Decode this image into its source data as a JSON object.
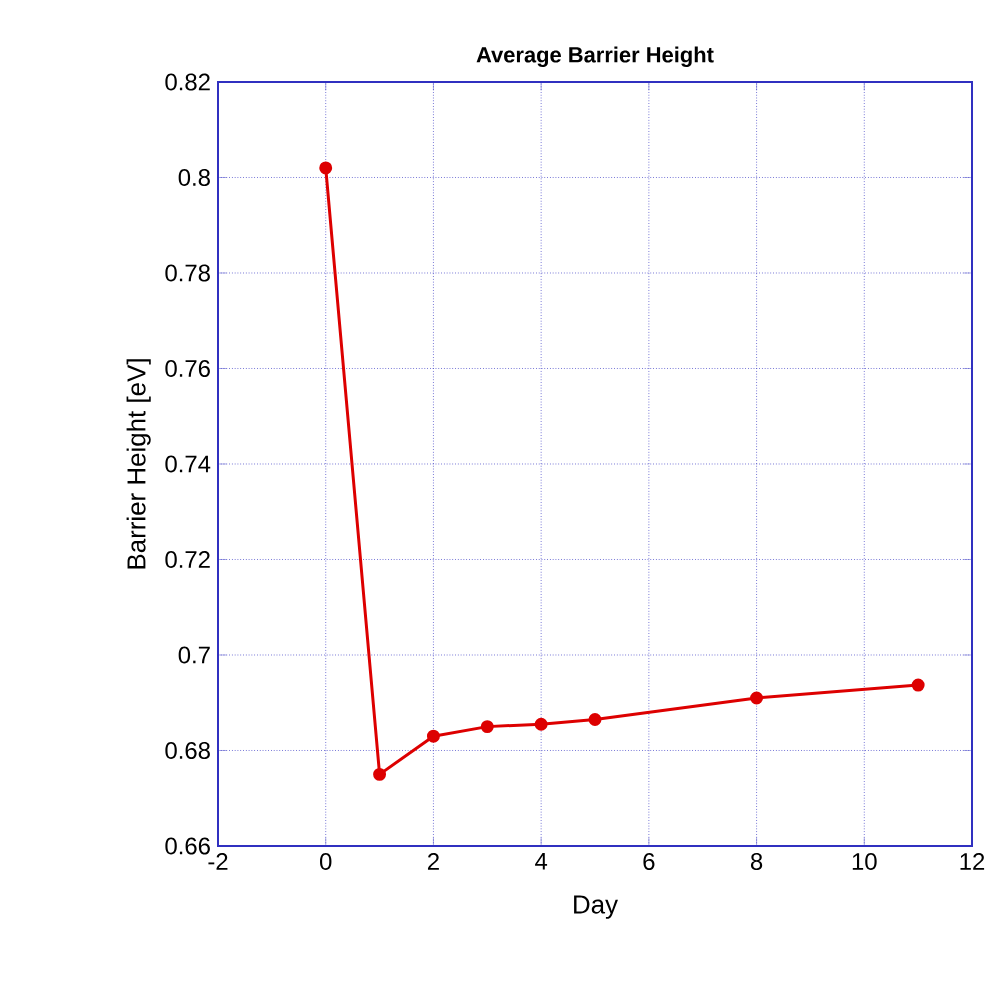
{
  "chart_data": {
    "type": "line",
    "title": "Average Barrier Height",
    "xlabel": "Day",
    "ylabel": "Barrier Height [eV]",
    "x": [
      0,
      1,
      2,
      3,
      4,
      5,
      8,
      11
    ],
    "series": [
      {
        "color": "#dd0000",
        "values": [
          0.802,
          0.675,
          0.683,
          0.685,
          0.6855,
          0.6865,
          0.691,
          0.6937
        ]
      }
    ],
    "xlim": [
      -2,
      12
    ],
    "xticks": [
      -2,
      0,
      2,
      4,
      6,
      8,
      10,
      12
    ],
    "ylim": [
      0.66,
      0.82
    ],
    "yticks": [
      0.66,
      0.68,
      0.7,
      0.72,
      0.74,
      0.76,
      0.78,
      0.8,
      0.82
    ],
    "grid": true,
    "marker": "circle",
    "line_style": "solid"
  }
}
